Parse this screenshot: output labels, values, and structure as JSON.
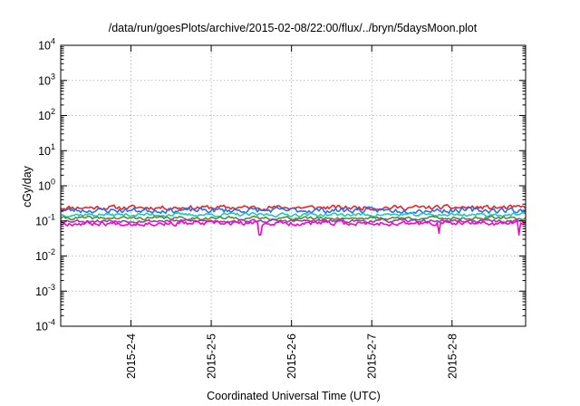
{
  "chart_data": {
    "type": "line",
    "title": "/data/run/goesPlots/archive/2015-02-08/22:00/flux/../bryn/5daysMoon.plot",
    "xlabel": "Coordinated Universal Time (UTC)",
    "ylabel": "cGy/day",
    "yscale": "log",
    "ylim": [
      0.0001,
      10000
    ],
    "xlim": [
      "2015-02-03 03:00",
      "2015-02-08 22:00"
    ],
    "grid": true,
    "x_ticks": [
      {
        "label": "2015-2-4",
        "value": "2015-02-04 00:00"
      },
      {
        "label": "2015-2-5",
        "value": "2015-02-05 00:00"
      },
      {
        "label": "2015-2-6",
        "value": "2015-02-06 00:00"
      },
      {
        "label": "2015-2-7",
        "value": "2015-02-07 00:00"
      },
      {
        "label": "2015-2-8",
        "value": "2015-02-08 00:00"
      }
    ],
    "y_ticks": [
      {
        "base": "10",
        "exp": "-4",
        "value": 0.0001
      },
      {
        "base": "10",
        "exp": "-3",
        "value": 0.001
      },
      {
        "base": "10",
        "exp": "-2",
        "value": 0.01
      },
      {
        "base": "10",
        "exp": "-1",
        "value": 0.1
      },
      {
        "base": "10",
        "exp": "0",
        "value": 1
      },
      {
        "base": "10",
        "exp": "1",
        "value": 10
      },
      {
        "base": "10",
        "exp": "2",
        "value": 100
      },
      {
        "base": "10",
        "exp": "3",
        "value": 1000
      },
      {
        "base": "10",
        "exp": "4",
        "value": 10000
      }
    ],
    "series": [
      {
        "color": "#e8232a",
        "level": 0.24,
        "spread": 0.1,
        "seed": 11
      },
      {
        "color": "#2b6fe8",
        "level": 0.2,
        "spread": 0.12,
        "seed": 23
      },
      {
        "color": "#1fc9b8",
        "level": 0.15,
        "spread": 0.08,
        "seed": 37
      },
      {
        "color": "#5a8a2a",
        "level": 0.12,
        "spread": 0.07,
        "seed": 41
      },
      {
        "color": "#8e44ad",
        "level": 0.1,
        "spread": 0.07,
        "seed": 53
      },
      {
        "color": "#ff00cc",
        "level": 0.085,
        "spread": 0.1,
        "seed": 67,
        "dips": [
          {
            "x": "2015-02-05 14:30",
            "y": 0.04
          },
          {
            "x": "2015-02-07 20:00",
            "y": 0.045
          },
          {
            "x": "2015-02-08 20:00",
            "y": 0.04
          }
        ]
      }
    ]
  }
}
